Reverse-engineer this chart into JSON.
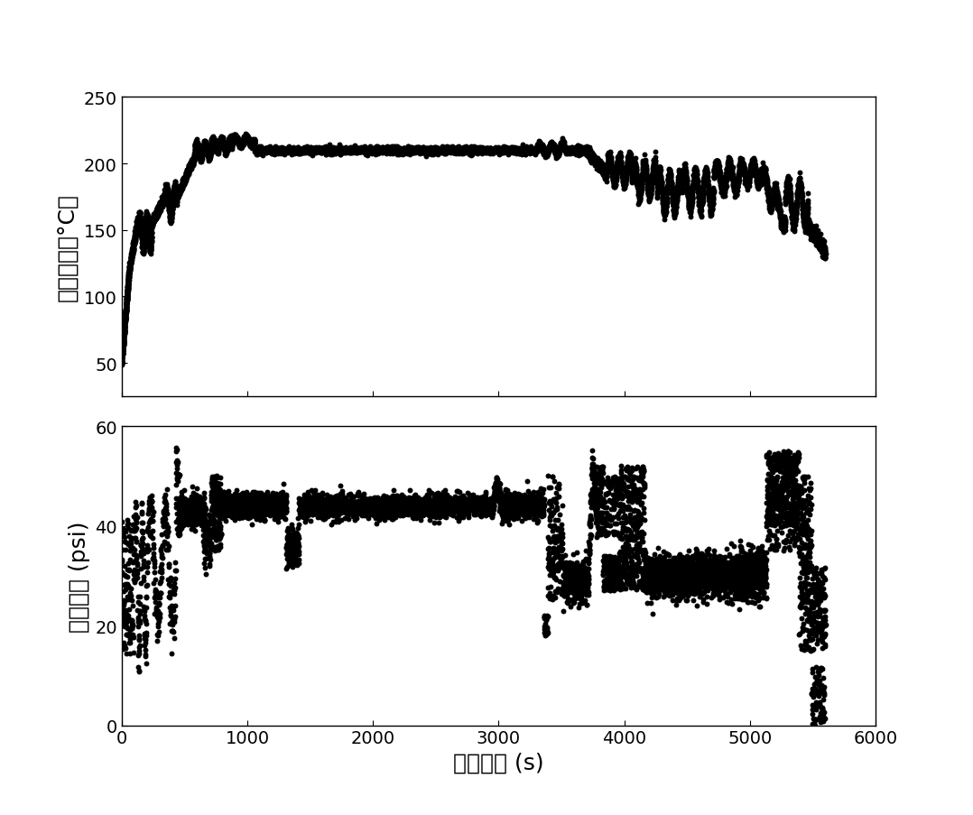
{
  "temp_ylabel": "引气温度（°C）",
  "pres_ylabel": "引气压力 (psi)",
  "xlabel": "飞行时间 (s)",
  "temp_ylim": [
    25,
    250
  ],
  "temp_yticks": [
    50,
    100,
    150,
    200,
    250
  ],
  "pres_ylim": [
    0,
    60
  ],
  "pres_yticks": [
    0,
    20,
    40,
    60
  ],
  "xlim": [
    0,
    6000
  ],
  "xticks": [
    0,
    1000,
    2000,
    3000,
    4000,
    5000,
    6000
  ],
  "dot_color": "#000000",
  "dot_size": 18,
  "background_color": "#ffffff",
  "label_fontsize": 18,
  "tick_fontsize": 14
}
